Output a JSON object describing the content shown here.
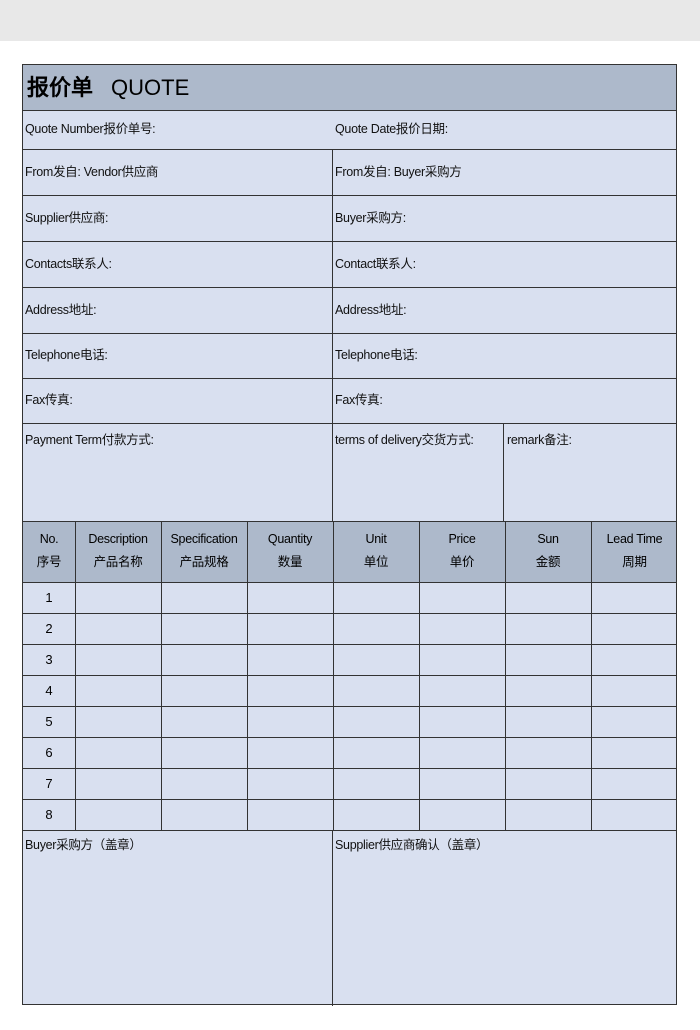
{
  "title": {
    "cn": "报价单",
    "en": "QUOTE"
  },
  "fields": {
    "quote_number": "Quote Number报价单号:",
    "quote_date": "Quote Date报价日期:",
    "from_vendor": "From发自:  Vendor供应商",
    "from_buyer": "From发自:  Buyer采购方",
    "supplier": "Supplier供应商:",
    "buyer": "Buyer采购方:",
    "contacts_left": "Contacts联系人:",
    "contacts_right": "Contact联系人:",
    "address_left": "Address地址:",
    "address_right": "Address地址:",
    "telephone_left": "Telephone电话:",
    "telephone_right": "Telephone电话:",
    "fax_left": "Fax传真:",
    "fax_right": "Fax传真:",
    "payment_term": "Payment Term付款方式:",
    "delivery_terms": "terms of delivery交货方式:",
    "remark": "remark备注:"
  },
  "table": {
    "columns": [
      {
        "en": "No.",
        "cn": "序号"
      },
      {
        "en": "Description",
        "cn": "产品名称"
      },
      {
        "en": "Specification",
        "cn": "产品规格"
      },
      {
        "en": "Quantity",
        "cn": "数量"
      },
      {
        "en": "Unit",
        "cn": "单位"
      },
      {
        "en": "Price",
        "cn": "单价"
      },
      {
        "en": "Sun",
        "cn": "金额"
      },
      {
        "en": "Lead Time",
        "cn": "周期"
      }
    ],
    "rows": [
      "1",
      "2",
      "3",
      "4",
      "5",
      "6",
      "7",
      "8"
    ]
  },
  "signatures": {
    "buyer": "Buyer采购方（盖章）",
    "supplier": "Supplier供应商确认（盖章）"
  },
  "colors": {
    "header_bg": "#adb9cb",
    "form_bg": "#d9e0f0",
    "border": "#333333"
  }
}
